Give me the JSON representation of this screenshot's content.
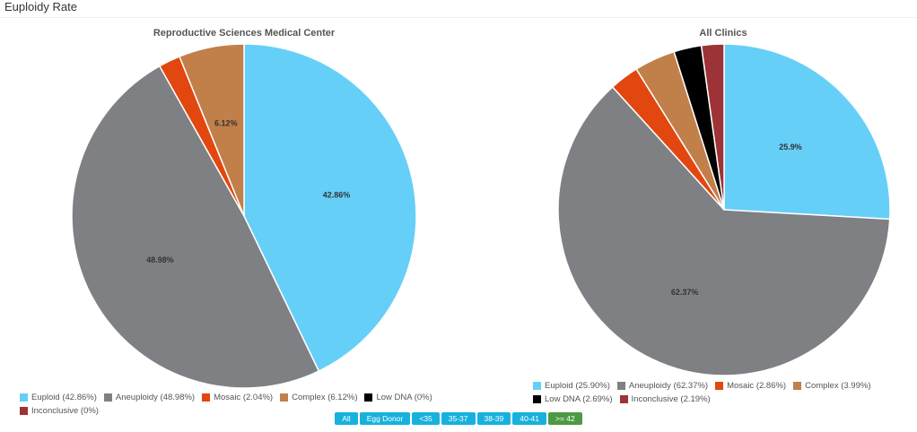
{
  "page": {
    "title": "Euploidy Rate"
  },
  "colors": {
    "euploid": "#66cff8",
    "aneuploidy": "#7f8083",
    "mosaic": "#e2470f",
    "complex": "#c17f4a",
    "low_dna": "#000000",
    "inconclusive": "#9d3336"
  },
  "chart_data": [
    {
      "type": "pie",
      "title": "Reproductive Sciences Medical Center",
      "slices": [
        {
          "label": "Euploid",
          "value": 42.86,
          "color": "#66cff8",
          "data_label": "42.86%",
          "legend": "Euploid (42.86%)"
        },
        {
          "label": "Aneuploidy",
          "value": 48.98,
          "color": "#7f8083",
          "data_label": "48.98%",
          "legend": "Aneuploidy (48.98%)"
        },
        {
          "label": "Mosaic",
          "value": 2.04,
          "color": "#e2470f",
          "data_label": "",
          "legend": "Mosaic (2.04%)"
        },
        {
          "label": "Complex",
          "value": 6.12,
          "color": "#c17f4a",
          "data_label": "6.12%",
          "legend": "Complex (6.12%)"
        },
        {
          "label": "Low DNA",
          "value": 0,
          "color": "#000000",
          "data_label": "",
          "legend": "Low DNA (0%)"
        },
        {
          "label": "Inconclusive",
          "value": 0,
          "color": "#9d3336",
          "data_label": "",
          "legend": "Inconclusive (0%)"
        }
      ],
      "legend_position": "bottom"
    },
    {
      "type": "pie",
      "title": "All Clinics",
      "slices": [
        {
          "label": "Euploid",
          "value": 25.9,
          "color": "#66cff8",
          "data_label": "25.9%",
          "legend": "Euploid (25.90%)"
        },
        {
          "label": "Aneuploidy",
          "value": 62.37,
          "color": "#7f8083",
          "data_label": "62.37%",
          "legend": "Aneuploidy (62.37%)"
        },
        {
          "label": "Mosaic",
          "value": 2.86,
          "color": "#e2470f",
          "data_label": "",
          "legend": "Mosaic (2.86%)"
        },
        {
          "label": "Complex",
          "value": 3.99,
          "color": "#c17f4a",
          "data_label": "",
          "legend": "Complex (3.99%)"
        },
        {
          "label": "Low DNA",
          "value": 2.69,
          "color": "#000000",
          "data_label": "",
          "legend": "Low DNA (2.69%)"
        },
        {
          "label": "Inconclusive",
          "value": 2.19,
          "color": "#9d3336",
          "data_label": "",
          "legend": "Inconclusive (2.19%)"
        }
      ],
      "legend_position": "bottom"
    }
  ],
  "filters": {
    "buttons": [
      {
        "label": "All",
        "active": false
      },
      {
        "label": "Egg Donor",
        "active": false
      },
      {
        "label": "<35",
        "active": false
      },
      {
        "label": "35-37",
        "active": false
      },
      {
        "label": "38-39",
        "active": false
      },
      {
        "label": "40-41",
        "active": false
      },
      {
        "label": ">= 42",
        "active": true
      }
    ]
  }
}
